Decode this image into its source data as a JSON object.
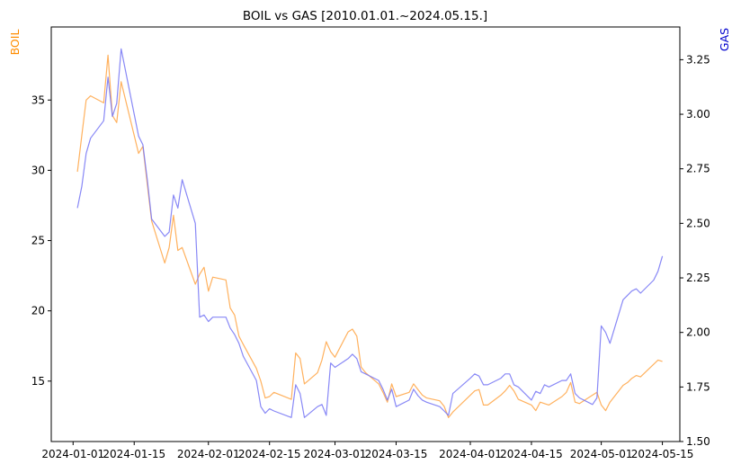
{
  "chart_data": {
    "type": "line",
    "title": "BOIL vs GAS [2010.01.01.~2024.05.15.]",
    "xlabel": "",
    "x_tick_labels": [
      "2024-01-01",
      "2024-01-15",
      "2024-02-01",
      "2024-02-15",
      "2024-03-01",
      "2024-03-15",
      "2024-04-01",
      "2024-04-15",
      "2024-05-01",
      "2024-05-15"
    ],
    "x_tick_dates": [
      "2024-01-01",
      "2024-01-15",
      "2024-02-01",
      "2024-02-15",
      "2024-03-01",
      "2024-03-15",
      "2024-04-01",
      "2024-04-15",
      "2024-05-01",
      "2024-05-15"
    ],
    "xlim": [
      "2023-12-27",
      "2024-05-19"
    ],
    "grid": false,
    "y_left": {
      "label": "BOIL",
      "color": "#ff8c00",
      "ylim": [
        10.7,
        40.2
      ],
      "ticks": [
        15,
        20,
        25,
        30,
        35
      ]
    },
    "y_right": {
      "label": "GAS",
      "color": "#0000cd",
      "ylim": [
        1.5,
        3.4
      ],
      "ticks": [
        "1.50",
        "1.75",
        "2.00",
        "2.25",
        "2.50",
        "2.75",
        "3.00",
        "3.25"
      ]
    },
    "series": [
      {
        "name": "BOIL",
        "axis": "left",
        "color": "#ffa94d",
        "points": [
          [
            "2024-01-02",
            29.9
          ],
          [
            "2024-01-03",
            32.5
          ],
          [
            "2024-01-04",
            35.0
          ],
          [
            "2024-01-05",
            35.3
          ],
          [
            "2024-01-08",
            34.8
          ],
          [
            "2024-01-09",
            38.2
          ],
          [
            "2024-01-10",
            33.9
          ],
          [
            "2024-01-11",
            33.4
          ],
          [
            "2024-01-12",
            36.3
          ],
          [
            "2024-01-16",
            31.2
          ],
          [
            "2024-01-17",
            31.7
          ],
          [
            "2024-01-18",
            29.0
          ],
          [
            "2024-01-19",
            26.4
          ],
          [
            "2024-01-22",
            23.4
          ],
          [
            "2024-01-23",
            24.5
          ],
          [
            "2024-01-24",
            26.8
          ],
          [
            "2024-01-25",
            24.3
          ],
          [
            "2024-01-26",
            24.5
          ],
          [
            "2024-01-29",
            21.9
          ],
          [
            "2024-01-30",
            22.6
          ],
          [
            "2024-01-31",
            23.1
          ],
          [
            "2024-02-01",
            21.4
          ],
          [
            "2024-02-02",
            22.4
          ],
          [
            "2024-02-05",
            22.2
          ],
          [
            "2024-02-06",
            20.2
          ],
          [
            "2024-02-07",
            19.7
          ],
          [
            "2024-02-08",
            18.2
          ],
          [
            "2024-02-09",
            17.6
          ],
          [
            "2024-02-12",
            15.9
          ],
          [
            "2024-02-13",
            15.0
          ],
          [
            "2024-02-14",
            13.8
          ],
          [
            "2024-02-15",
            13.9
          ],
          [
            "2024-02-16",
            14.2
          ],
          [
            "2024-02-20",
            13.7
          ],
          [
            "2024-02-21",
            17.0
          ],
          [
            "2024-02-22",
            16.6
          ],
          [
            "2024-02-23",
            14.8
          ],
          [
            "2024-02-26",
            15.6
          ],
          [
            "2024-02-27",
            16.5
          ],
          [
            "2024-02-28",
            17.8
          ],
          [
            "2024-02-29",
            17.1
          ],
          [
            "2024-03-01",
            16.7
          ],
          [
            "2024-03-04",
            18.5
          ],
          [
            "2024-03-05",
            18.7
          ],
          [
            "2024-03-06",
            18.2
          ],
          [
            "2024-03-07",
            16.0
          ],
          [
            "2024-03-08",
            15.6
          ],
          [
            "2024-03-11",
            14.8
          ],
          [
            "2024-03-12",
            14.2
          ],
          [
            "2024-03-13",
            13.5
          ],
          [
            "2024-03-14",
            14.8
          ],
          [
            "2024-03-15",
            13.9
          ],
          [
            "2024-03-18",
            14.2
          ],
          [
            "2024-03-19",
            14.8
          ],
          [
            "2024-03-20",
            14.4
          ],
          [
            "2024-03-21",
            14.0
          ],
          [
            "2024-03-22",
            13.8
          ],
          [
            "2024-03-25",
            13.6
          ],
          [
            "2024-03-26",
            13.2
          ],
          [
            "2024-03-27",
            12.4
          ],
          [
            "2024-03-28",
            12.8
          ],
          [
            "2024-04-01",
            14.0
          ],
          [
            "2024-04-02",
            14.3
          ],
          [
            "2024-04-03",
            14.4
          ],
          [
            "2024-04-04",
            13.3
          ],
          [
            "2024-04-05",
            13.3
          ],
          [
            "2024-04-08",
            14.0
          ],
          [
            "2024-04-09",
            14.3
          ],
          [
            "2024-04-10",
            14.7
          ],
          [
            "2024-04-11",
            14.3
          ],
          [
            "2024-04-12",
            13.7
          ],
          [
            "2024-04-15",
            13.3
          ],
          [
            "2024-04-16",
            12.9
          ],
          [
            "2024-04-17",
            13.5
          ],
          [
            "2024-04-18",
            13.4
          ],
          [
            "2024-04-19",
            13.3
          ],
          [
            "2024-04-22",
            13.9
          ],
          [
            "2024-04-23",
            14.2
          ],
          [
            "2024-04-24",
            14.9
          ],
          [
            "2024-04-25",
            13.5
          ],
          [
            "2024-04-26",
            13.4
          ],
          [
            "2024-04-29",
            14.0
          ],
          [
            "2024-04-30",
            14.2
          ],
          [
            "2024-05-01",
            13.3
          ],
          [
            "2024-05-02",
            12.9
          ],
          [
            "2024-05-03",
            13.5
          ],
          [
            "2024-05-06",
            14.7
          ],
          [
            "2024-05-07",
            14.9
          ],
          [
            "2024-05-08",
            15.2
          ],
          [
            "2024-05-09",
            15.4
          ],
          [
            "2024-05-10",
            15.3
          ],
          [
            "2024-05-13",
            16.2
          ],
          [
            "2024-05-14",
            16.5
          ],
          [
            "2024-05-15",
            16.4
          ]
        ]
      },
      {
        "name": "GAS",
        "axis": "right",
        "color": "#7b7bf5",
        "points": [
          [
            "2024-01-02",
            2.57
          ],
          [
            "2024-01-03",
            2.67
          ],
          [
            "2024-01-04",
            2.82
          ],
          [
            "2024-01-05",
            2.89
          ],
          [
            "2024-01-08",
            2.97
          ],
          [
            "2024-01-09",
            3.17
          ],
          [
            "2024-01-10",
            2.99
          ],
          [
            "2024-01-11",
            3.05
          ],
          [
            "2024-01-12",
            3.3
          ],
          [
            "2024-01-16",
            2.9
          ],
          [
            "2024-01-17",
            2.86
          ],
          [
            "2024-01-18",
            2.7
          ],
          [
            "2024-01-19",
            2.52
          ],
          [
            "2024-01-22",
            2.44
          ],
          [
            "2024-01-23",
            2.46
          ],
          [
            "2024-01-24",
            2.63
          ],
          [
            "2024-01-25",
            2.57
          ],
          [
            "2024-01-26",
            2.7
          ],
          [
            "2024-01-29",
            2.5
          ],
          [
            "2024-01-30",
            2.07
          ],
          [
            "2024-01-31",
            2.08
          ],
          [
            "2024-02-01",
            2.05
          ],
          [
            "2024-02-02",
            2.07
          ],
          [
            "2024-02-05",
            2.07
          ],
          [
            "2024-02-06",
            2.02
          ],
          [
            "2024-02-07",
            1.99
          ],
          [
            "2024-02-08",
            1.95
          ],
          [
            "2024-02-09",
            1.89
          ],
          [
            "2024-02-12",
            1.78
          ],
          [
            "2024-02-13",
            1.66
          ],
          [
            "2024-02-14",
            1.63
          ],
          [
            "2024-02-15",
            1.65
          ],
          [
            "2024-02-16",
            1.64
          ],
          [
            "2024-02-20",
            1.61
          ],
          [
            "2024-02-21",
            1.76
          ],
          [
            "2024-02-22",
            1.72
          ],
          [
            "2024-02-23",
            1.61
          ],
          [
            "2024-02-26",
            1.66
          ],
          [
            "2024-02-27",
            1.67
          ],
          [
            "2024-02-28",
            1.62
          ],
          [
            "2024-02-29",
            1.86
          ],
          [
            "2024-03-01",
            1.84
          ],
          [
            "2024-03-04",
            1.88
          ],
          [
            "2024-03-05",
            1.9
          ],
          [
            "2024-03-06",
            1.88
          ],
          [
            "2024-03-07",
            1.82
          ],
          [
            "2024-03-08",
            1.81
          ],
          [
            "2024-03-11",
            1.78
          ],
          [
            "2024-03-12",
            1.74
          ],
          [
            "2024-03-13",
            1.69
          ],
          [
            "2024-03-14",
            1.74
          ],
          [
            "2024-03-15",
            1.66
          ],
          [
            "2024-03-18",
            1.69
          ],
          [
            "2024-03-19",
            1.74
          ],
          [
            "2024-03-20",
            1.71
          ],
          [
            "2024-03-21",
            1.69
          ],
          [
            "2024-03-22",
            1.68
          ],
          [
            "2024-03-25",
            1.66
          ],
          [
            "2024-03-26",
            1.64
          ],
          [
            "2024-03-27",
            1.62
          ],
          [
            "2024-03-28",
            1.72
          ],
          [
            "2024-04-01",
            1.79
          ],
          [
            "2024-04-02",
            1.81
          ],
          [
            "2024-04-03",
            1.8
          ],
          [
            "2024-04-04",
            1.76
          ],
          [
            "2024-04-05",
            1.76
          ],
          [
            "2024-04-08",
            1.79
          ],
          [
            "2024-04-09",
            1.81
          ],
          [
            "2024-04-10",
            1.81
          ],
          [
            "2024-04-11",
            1.76
          ],
          [
            "2024-04-12",
            1.75
          ],
          [
            "2024-04-15",
            1.69
          ],
          [
            "2024-04-16",
            1.73
          ],
          [
            "2024-04-17",
            1.72
          ],
          [
            "2024-04-18",
            1.76
          ],
          [
            "2024-04-19",
            1.75
          ],
          [
            "2024-04-22",
            1.78
          ],
          [
            "2024-04-23",
            1.78
          ],
          [
            "2024-04-24",
            1.81
          ],
          [
            "2024-04-25",
            1.72
          ],
          [
            "2024-04-26",
            1.7
          ],
          [
            "2024-04-29",
            1.67
          ],
          [
            "2024-04-30",
            1.7
          ],
          [
            "2024-05-01",
            2.03
          ],
          [
            "2024-05-02",
            2.0
          ],
          [
            "2024-05-03",
            1.95
          ],
          [
            "2024-05-06",
            2.15
          ],
          [
            "2024-05-07",
            2.17
          ],
          [
            "2024-05-08",
            2.19
          ],
          [
            "2024-05-09",
            2.2
          ],
          [
            "2024-05-10",
            2.18
          ],
          [
            "2024-05-13",
            2.24
          ],
          [
            "2024-05-14",
            2.28
          ],
          [
            "2024-05-15",
            2.35
          ]
        ]
      }
    ]
  }
}
